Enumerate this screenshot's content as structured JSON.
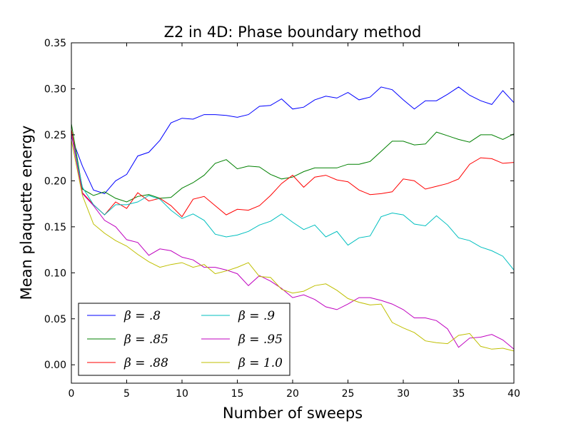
{
  "chart_data": {
    "type": "line",
    "title": "Z2 in 4D: Phase boundary method",
    "xlabel": "Number of sweeps",
    "ylabel": "Mean plaquette energy",
    "xlim": [
      0,
      40
    ],
    "ylim": [
      -0.02,
      0.35
    ],
    "xticks": [
      0,
      5,
      10,
      15,
      20,
      25,
      30,
      35,
      40
    ],
    "xtick_labels": [
      "0",
      "5",
      "10",
      "15",
      "20",
      "25",
      "30",
      "35",
      "40"
    ],
    "yticks": [
      0.0,
      0.05,
      0.1,
      0.15,
      0.2,
      0.25,
      0.3,
      0.35
    ],
    "ytick_labels": [
      "0.00",
      "0.05",
      "0.10",
      "0.15",
      "0.20",
      "0.25",
      "0.30",
      "0.35"
    ],
    "grid": false,
    "legend_position": "lower-left",
    "x": [
      0,
      1,
      2,
      3,
      4,
      5,
      6,
      7,
      8,
      9,
      10,
      11,
      12,
      13,
      14,
      15,
      16,
      17,
      18,
      19,
      20,
      21,
      22,
      23,
      24,
      25,
      26,
      27,
      28,
      29,
      30,
      31,
      32,
      33,
      34,
      35,
      36,
      37,
      38,
      39,
      40
    ],
    "series": [
      {
        "name": "β = .8",
        "color": "#0000ff",
        "values": [
          0.248,
          0.216,
          0.19,
          0.186,
          0.2,
          0.207,
          0.227,
          0.231,
          0.244,
          0.263,
          0.268,
          0.267,
          0.272,
          0.272,
          0.271,
          0.269,
          0.272,
          0.281,
          0.282,
          0.289,
          0.278,
          0.28,
          0.288,
          0.292,
          0.29,
          0.296,
          0.288,
          0.291,
          0.302,
          0.299,
          0.288,
          0.278,
          0.287,
          0.287,
          0.294,
          0.302,
          0.293,
          0.287,
          0.283,
          0.298,
          0.285
        ]
      },
      {
        "name": "β = .85",
        "color": "#008000",
        "values": [
          0.262,
          0.191,
          0.184,
          0.188,
          0.181,
          0.177,
          0.183,
          0.185,
          0.181,
          0.182,
          0.192,
          0.198,
          0.206,
          0.219,
          0.223,
          0.213,
          0.216,
          0.215,
          0.207,
          0.202,
          0.204,
          0.21,
          0.214,
          0.214,
          0.214,
          0.218,
          0.218,
          0.221,
          0.232,
          0.243,
          0.243,
          0.239,
          0.24,
          0.253,
          0.249,
          0.245,
          0.242,
          0.25,
          0.25,
          0.245,
          0.251
        ]
      },
      {
        "name": "β = .88",
        "color": "#ff0000",
        "values": [
          0.256,
          0.187,
          0.174,
          0.163,
          0.177,
          0.17,
          0.187,
          0.178,
          0.181,
          0.173,
          0.161,
          0.18,
          0.183,
          0.173,
          0.163,
          0.169,
          0.168,
          0.173,
          0.184,
          0.197,
          0.206,
          0.193,
          0.204,
          0.206,
          0.201,
          0.199,
          0.19,
          0.185,
          0.186,
          0.188,
          0.202,
          0.2,
          0.191,
          0.194,
          0.197,
          0.202,
          0.218,
          0.225,
          0.224,
          0.219,
          0.22
        ]
      },
      {
        "name": "β = .9",
        "color": "#00bfbf",
        "values": [
          0.251,
          0.193,
          0.174,
          0.163,
          0.174,
          0.174,
          0.177,
          0.184,
          0.18,
          0.168,
          0.159,
          0.164,
          0.157,
          0.142,
          0.139,
          0.141,
          0.145,
          0.152,
          0.156,
          0.164,
          0.155,
          0.147,
          0.152,
          0.139,
          0.145,
          0.13,
          0.138,
          0.14,
          0.161,
          0.165,
          0.163,
          0.153,
          0.151,
          0.162,
          0.152,
          0.138,
          0.135,
          0.128,
          0.124,
          0.118,
          0.103
        ]
      },
      {
        "name": "β = .95",
        "color": "#bf00bf",
        "values": [
          0.251,
          0.186,
          0.173,
          0.157,
          0.15,
          0.136,
          0.133,
          0.119,
          0.126,
          0.124,
          0.117,
          0.114,
          0.106,
          0.106,
          0.103,
          0.099,
          0.086,
          0.097,
          0.091,
          0.083,
          0.073,
          0.076,
          0.071,
          0.063,
          0.06,
          0.066,
          0.073,
          0.073,
          0.07,
          0.066,
          0.06,
          0.051,
          0.051,
          0.048,
          0.039,
          0.019,
          0.029,
          0.03,
          0.033,
          0.027,
          0.017
        ]
      },
      {
        "name": "β = 1.0",
        "color": "#bfbf00",
        "values": [
          0.244,
          0.184,
          0.153,
          0.143,
          0.135,
          0.129,
          0.12,
          0.112,
          0.106,
          0.109,
          0.111,
          0.106,
          0.109,
          0.099,
          0.102,
          0.106,
          0.111,
          0.096,
          0.095,
          0.082,
          0.078,
          0.08,
          0.086,
          0.088,
          0.081,
          0.072,
          0.068,
          0.065,
          0.066,
          0.046,
          0.04,
          0.035,
          0.026,
          0.024,
          0.023,
          0.032,
          0.034,
          0.02,
          0.017,
          0.018,
          0.015
        ]
      }
    ]
  }
}
